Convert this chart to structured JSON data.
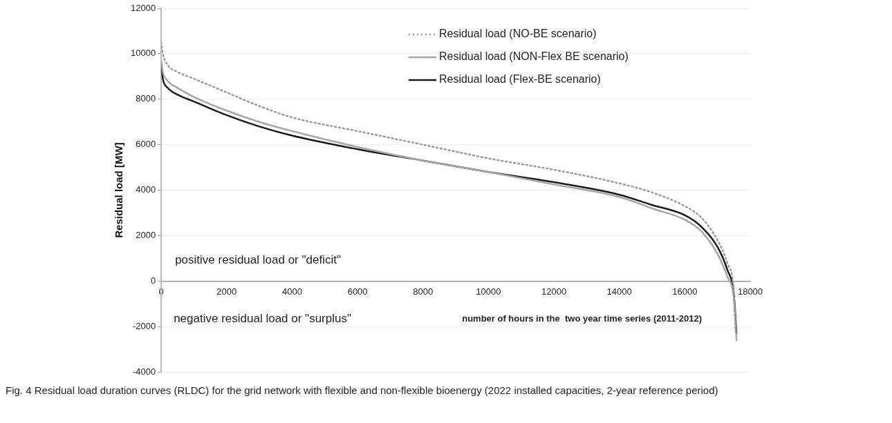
{
  "chart_data": {
    "type": "line",
    "xlabel": "number of hours in the  two year time series (2011-2012)",
    "ylabel": "Residual load [MW]",
    "xlim": [
      0,
      18000
    ],
    "xticks": [
      0,
      2000,
      4000,
      6000,
      8000,
      10000,
      12000,
      14000,
      16000,
      18000
    ],
    "ylim": [
      -4000,
      12000
    ],
    "yticks": [
      -4000,
      -2000,
      0,
      2000,
      4000,
      6000,
      8000,
      10000,
      12000
    ],
    "grid": "y",
    "legend": "top right",
    "marker": "none",
    "annotations": [
      "positive residual load or \"deficit\"",
      "negative residual load or \"surplus\"",
      "Fig. 4 Residual load duration curves (RLDC) for the grid network with flexible and non-flexible bioenergy (2022 installed capacities, 2-year reference period)"
    ],
    "series": [
      {
        "name": "Residual load (NO-BE scenario)",
        "color": "#999999",
        "line_style": "dotted",
        "x": [
          0,
          50,
          200,
          500,
          1000,
          2000,
          3000,
          4000,
          6000,
          8000,
          10000,
          12000,
          14000,
          15000,
          16000,
          16500,
          17000,
          17300,
          17500,
          17550
        ],
        "values": [
          10500,
          10000,
          9500,
          9200,
          8900,
          8300,
          7700,
          7200,
          6600,
          6000,
          5400,
          4900,
          4300,
          3900,
          3300,
          2800,
          1800,
          800,
          -500,
          -2200
        ]
      },
      {
        "name": "Residual load (NON-Flex BE scenario)",
        "color": "#a6a6a6",
        "line_style": "solid",
        "x": [
          0,
          50,
          200,
          500,
          1000,
          2000,
          3000,
          4000,
          6000,
          8000,
          10000,
          12000,
          14000,
          15000,
          16000,
          16500,
          17000,
          17300,
          17500,
          17580
        ],
        "values": [
          9700,
          9200,
          8800,
          8500,
          8100,
          7500,
          7000,
          6600,
          5900,
          5300,
          4800,
          4250,
          3700,
          3200,
          2700,
          2200,
          1200,
          200,
          -800,
          -2600
        ]
      },
      {
        "name": "Residual load (Flex-BE scenario)",
        "color": "#1a1a1a",
        "line_style": "solid",
        "x": [
          0,
          50,
          200,
          500,
          1000,
          2000,
          3000,
          4000,
          6000,
          8000,
          10000,
          12000,
          14000,
          15000,
          16000,
          16500,
          17000,
          17300,
          17500,
          17580
        ],
        "values": [
          9500,
          8900,
          8500,
          8200,
          7900,
          7300,
          6800,
          6400,
          5800,
          5300,
          4800,
          4350,
          3800,
          3350,
          2900,
          2400,
          1500,
          500,
          -600,
          -2300
        ]
      }
    ]
  }
}
